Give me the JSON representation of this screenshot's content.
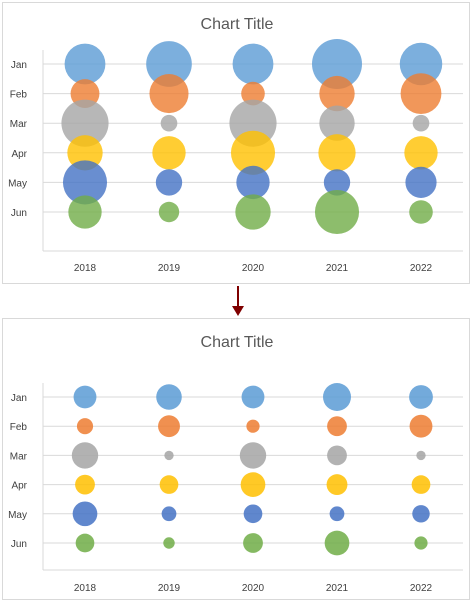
{
  "chart_data": [
    {
      "type": "bubble",
      "title": "Chart Title",
      "categories": [
        "2018",
        "2019",
        "2020",
        "2021",
        "2022"
      ],
      "months": [
        "Jan",
        "Feb",
        "Mar",
        "Apr",
        "May",
        "Jun"
      ],
      "grid": true,
      "legend": "none",
      "series": [
        {
          "month": "Jan",
          "color": "#5b9bd5",
          "values": [
            60,
            75,
            60,
            90,
            65
          ]
        },
        {
          "month": "Feb",
          "color": "#ed7d31",
          "values": [
            30,
            55,
            20,
            45,
            60
          ]
        },
        {
          "month": "Mar",
          "color": "#a5a5a5",
          "values": [
            80,
            10,
            80,
            45,
            10
          ]
        },
        {
          "month": "Apr",
          "color": "#ffc000",
          "values": [
            45,
            40,
            70,
            50,
            40
          ]
        },
        {
          "month": "May",
          "color": "#4472c4",
          "values": [
            70,
            25,
            40,
            25,
            35
          ]
        },
        {
          "month": "Jun",
          "color": "#70ad47",
          "values": [
            40,
            15,
            45,
            70,
            20
          ]
        }
      ]
    },
    {
      "type": "bubble",
      "title": "Chart Title",
      "categories": [
        "2018",
        "2019",
        "2020",
        "2021",
        "2022"
      ],
      "months": [
        "Jan",
        "Feb",
        "Mar",
        "Apr",
        "May",
        "Jun"
      ],
      "grid": true,
      "legend": "none",
      "series": [
        {
          "month": "Jan",
          "color": "#5b9bd5",
          "values": [
            60,
            75,
            60,
            90,
            65
          ]
        },
        {
          "month": "Feb",
          "color": "#ed7d31",
          "values": [
            30,
            55,
            20,
            45,
            60
          ]
        },
        {
          "month": "Mar",
          "color": "#a5a5a5",
          "values": [
            80,
            10,
            80,
            45,
            10
          ]
        },
        {
          "month": "Apr",
          "color": "#ffc000",
          "values": [
            45,
            40,
            70,
            50,
            40
          ]
        },
        {
          "month": "May",
          "color": "#4472c4",
          "values": [
            70,
            25,
            40,
            25,
            35
          ]
        },
        {
          "month": "Jun",
          "color": "#70ad47",
          "values": [
            40,
            15,
            45,
            70,
            20
          ]
        }
      ]
    }
  ],
  "arrow_color": "#7f0000",
  "gridline_color": "#d9d9d9"
}
